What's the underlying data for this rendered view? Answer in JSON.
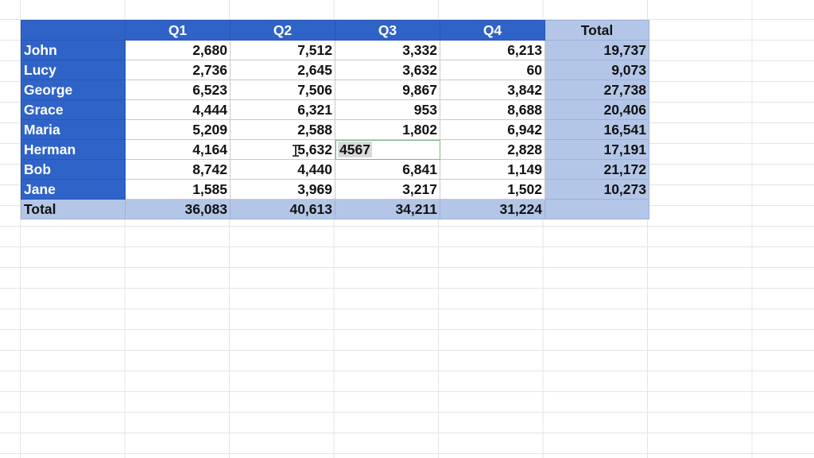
{
  "sheet": {
    "headers": [
      "",
      "Q1",
      "Q2",
      "Q3",
      "Q4",
      "Total"
    ],
    "rows": [
      {
        "name": "John",
        "q1": "2,680",
        "q2": "7,512",
        "q3": "3,332",
        "q4": "6,213",
        "total": "19,737"
      },
      {
        "name": "Lucy",
        "q1": "2,736",
        "q2": "2,645",
        "q3": "3,632",
        "q4": "60",
        "total": "9,073"
      },
      {
        "name": "George",
        "q1": "6,523",
        "q2": "7,506",
        "q3": "9,867",
        "q4": "3,842",
        "total": "27,738"
      },
      {
        "name": "Grace",
        "q1": "4,444",
        "q2": "6,321",
        "q3": "953",
        "q4": "8,688",
        "total": "20,406"
      },
      {
        "name": "Maria",
        "q1": "5,209",
        "q2": "2,588",
        "q3": "1,802",
        "q4": "6,942",
        "total": "16,541"
      },
      {
        "name": "Herman",
        "q1": "4,164",
        "q2": "5,632",
        "q3": "4567",
        "q4": "2,828",
        "total": "17,191"
      },
      {
        "name": "Bob",
        "q1": "8,742",
        "q2": "4,440",
        "q3": "6,841",
        "q4": "1,149",
        "total": "21,172"
      },
      {
        "name": "Jane",
        "q1": "1,585",
        "q2": "3,969",
        "q3": "3,217",
        "q4": "1,502",
        "total": "10,273"
      }
    ],
    "footer": {
      "label": "Total",
      "q1": "36,083",
      "q2": "40,613",
      "q3": "34,211",
      "q4": "31,224",
      "total": ""
    },
    "editing_cell": {
      "row": "Herman",
      "column": "Q3",
      "value": "4567"
    }
  },
  "colors": {
    "header_blue": "#2f63c8",
    "total_light_blue": "#b4c6e7",
    "gridline": "#e4e4e4"
  },
  "icons": {
    "cursor": "text-ibeam-cursor"
  }
}
